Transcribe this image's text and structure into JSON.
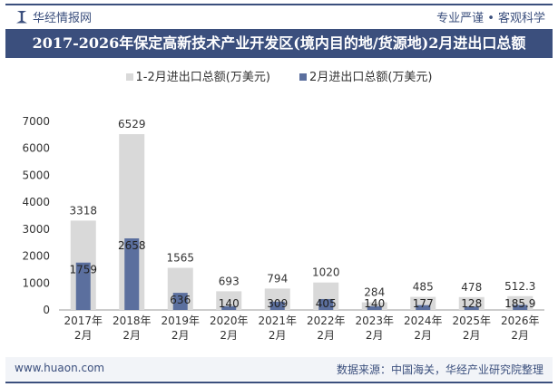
{
  "header": {
    "brand": "华经情报网",
    "slogan": "专业严谨 • 客观科学"
  },
  "title": "2017-2026年保定高新技术产业开发区(境内目的地/货源地)2月进出口总额",
  "footer": {
    "url": "www.huaon.com",
    "source": "数据来源：中国海关，华经产业研究院整理"
  },
  "chart_data": {
    "type": "bar",
    "categories": [
      "2017年\n2月",
      "2018年\n2月",
      "2019年\n2月",
      "2020年\n2月",
      "2021年\n2月",
      "2022年\n2月",
      "2023年\n2月",
      "2024年\n2月",
      "2025年\n2月",
      "2026年\n2月"
    ],
    "series": [
      {
        "name": "1-2月进出口总额(万美元)",
        "color": "#d9d9d9",
        "values": [
          3318,
          6529,
          1565,
          693,
          794,
          1020,
          284,
          485,
          478,
          512.3
        ]
      },
      {
        "name": "2月进出口总额(万美元)",
        "color": "#5b6f9e",
        "values": [
          1759,
          2658,
          636,
          140,
          309,
          405,
          140,
          177,
          128,
          185.9
        ]
      }
    ],
    "ylim": [
      0,
      7000
    ],
    "yticks": [
      0,
      1000,
      2000,
      3000,
      4000,
      5000,
      6000,
      7000
    ],
    "legend": "top",
    "grid": false
  }
}
